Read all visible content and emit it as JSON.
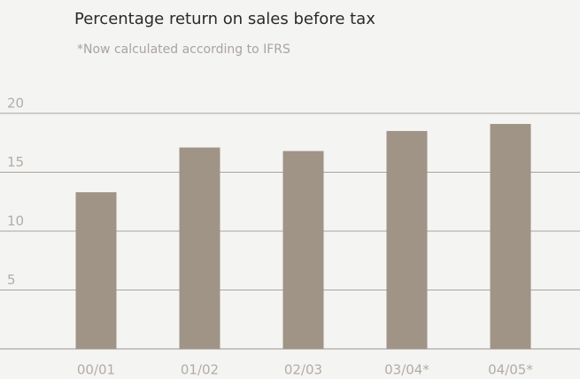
{
  "chart_data": {
    "type": "bar",
    "title": "Percentage return on sales before tax",
    "subtitle": "*Now calculated according to IFRS",
    "categories": [
      "00/01",
      "01/02",
      "02/03",
      "03/04*",
      "04/05*"
    ],
    "values": [
      13.3,
      17.1,
      16.8,
      18.5,
      19.1
    ],
    "color": "#a09486",
    "ylim": [
      0,
      20
    ],
    "yticks": [
      5,
      10,
      15,
      20
    ],
    "grid": true
  }
}
